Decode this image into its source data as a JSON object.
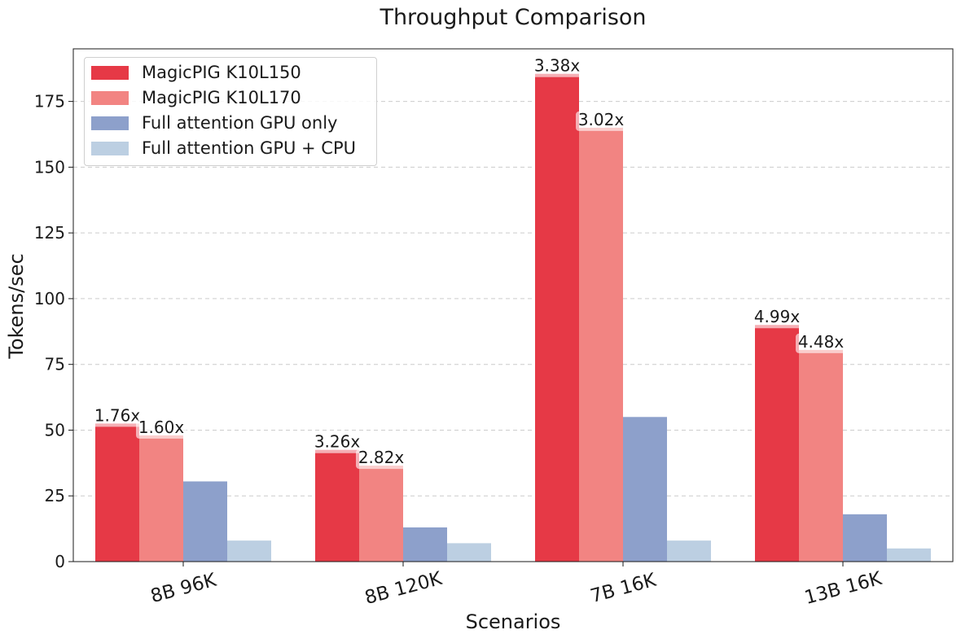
{
  "chart_data": {
    "type": "bar",
    "title": "Throughput Comparison",
    "xlabel": "Scenarios",
    "ylabel": "Tokens/sec",
    "categories": [
      "8B 96K",
      "8B 120K",
      "7B 16K",
      "13B 16K"
    ],
    "ylim": [
      0,
      195
    ],
    "yticks": [
      "0",
      "25",
      "50",
      "75",
      "100",
      "125",
      "150",
      "175"
    ],
    "grid": "horizontal dashed",
    "legend_position": "top-left",
    "series": [
      {
        "name": "MagicPIG K10L150",
        "color": "#e63946",
        "values": [
          52.5,
          42.5,
          185.5,
          90.0
        ],
        "labels": [
          "1.76x",
          "3.26x",
          "3.38x",
          "4.99x"
        ]
      },
      {
        "name": "MagicPIG K10L170",
        "color": "#f28482",
        "values": [
          48.0,
          36.5,
          165.0,
          80.5
        ],
        "labels": [
          "1.60x",
          "2.82x",
          "3.02x",
          "4.48x"
        ]
      },
      {
        "name": "Full attention GPU only",
        "color": "#8da0cb",
        "values": [
          30.5,
          13.0,
          55.0,
          18.0
        ]
      },
      {
        "name": "Full attention GPU + CPU",
        "color": "#bccfe2",
        "values": [
          8.0,
          7.0,
          8.0,
          5.0
        ]
      }
    ]
  }
}
